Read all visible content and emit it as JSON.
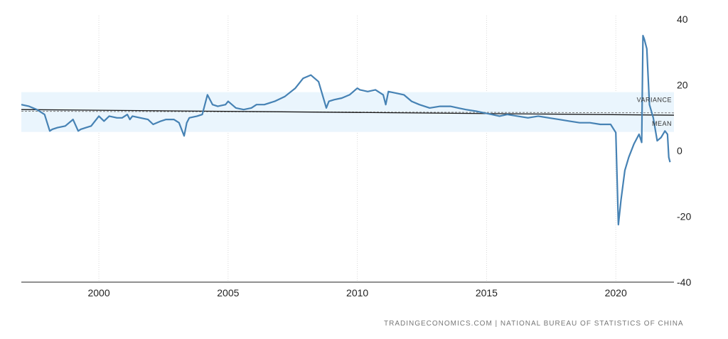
{
  "chart_data": {
    "type": "line",
    "title": "",
    "xlabel": "",
    "ylabel": "",
    "xlim": [
      1997.0,
      2022.25
    ],
    "ylim": [
      -40,
      40
    ],
    "x_ticks": [
      2000,
      2005,
      2010,
      2015,
      2020
    ],
    "y_ticks": [
      40,
      20,
      0,
      -20,
      -40
    ],
    "x_tick_labels": [
      "2000",
      "2005",
      "2010",
      "2015",
      "2020"
    ],
    "y_tick_labels": [
      "40",
      "20",
      "0",
      "-20",
      "-40"
    ],
    "grid": "vertical dotted",
    "series": [
      {
        "color": "#4682b4",
        "x": [
          1997.0,
          1997.3,
          1997.6,
          1997.9,
          1998.1,
          1998.2,
          1998.4,
          1998.7,
          1999.0,
          1999.2,
          1999.3,
          1999.5,
          1999.7,
          2000.0,
          2000.2,
          2000.4,
          2000.7,
          2000.9,
          2001.1,
          2001.2,
          2001.3,
          2001.6,
          2001.9,
          2002.1,
          2002.4,
          2002.6,
          2002.9,
          2003.1,
          2003.3,
          2003.4,
          2003.5,
          2003.8,
          2004.0,
          2004.2,
          2004.4,
          2004.6,
          2004.9,
          2005.0,
          2005.3,
          2005.6,
          2005.9,
          2006.1,
          2006.4,
          2006.8,
          2007.2,
          2007.6,
          2007.9,
          2008.2,
          2008.5,
          2008.8,
          2008.9,
          2009.1,
          2009.4,
          2009.7,
          2010.0,
          2010.1,
          2010.4,
          2010.7,
          2011.0,
          2011.1,
          2011.2,
          2011.5,
          2011.8,
          2012.1,
          2012.4,
          2012.8,
          2013.2,
          2013.6,
          2013.9,
          2014.2,
          2014.6,
          2014.9,
          2015.2,
          2015.5,
          2015.8,
          2016.2,
          2016.6,
          2017.0,
          2017.4,
          2017.8,
          2018.2,
          2018.6,
          2019.0,
          2019.4,
          2019.8,
          2020.0,
          2020.1,
          2020.2,
          2020.35,
          2020.5,
          2020.7,
          2020.9,
          2021.0,
          2021.05,
          2021.1,
          2021.2,
          2021.3,
          2021.45,
          2021.6,
          2021.75,
          2021.9,
          2022.0,
          2022.05,
          2022.1
        ],
        "y": [
          14.0,
          13.5,
          12.5,
          11.0,
          6.0,
          6.5,
          7.0,
          7.5,
          9.5,
          6.0,
          6.5,
          7.0,
          7.5,
          10.5,
          9.0,
          10.5,
          10.0,
          10.0,
          11.0,
          9.5,
          10.5,
          10.0,
          9.5,
          8.0,
          9.0,
          9.5,
          9.5,
          8.5,
          4.5,
          8.5,
          10.0,
          10.5,
          11.0,
          17.0,
          14.0,
          13.5,
          14.0,
          15.0,
          13.0,
          12.5,
          13.0,
          14.0,
          14.0,
          15.0,
          16.5,
          19.0,
          22.0,
          23.0,
          21.0,
          13.0,
          15.0,
          15.5,
          16.0,
          17.0,
          19.0,
          18.5,
          18.0,
          18.5,
          17.0,
          14.0,
          18.0,
          17.5,
          17.0,
          15.0,
          14.0,
          13.0,
          13.5,
          13.5,
          13.0,
          12.5,
          12.0,
          11.5,
          11.0,
          10.5,
          11.0,
          10.5,
          10.0,
          10.5,
          10.0,
          9.5,
          9.0,
          8.5,
          8.5,
          8.0,
          8.0,
          5.5,
          -22.5,
          -15.0,
          -6.0,
          -2.0,
          2.0,
          5.0,
          2.5,
          35.0,
          34.0,
          31.0,
          14.0,
          10.0,
          3.0,
          4.0,
          6.0,
          5.0,
          -2.0,
          -3.5
        ]
      }
    ],
    "mean": {
      "label": "MEAN",
      "y_start": 12.5,
      "y_end": 10.8
    },
    "variance": {
      "label": "VARIANCE",
      "upper": 17.8,
      "lower": 5.7,
      "dashed_start": 12.0,
      "dashed_end": 11.5
    },
    "colors": {
      "line": "#4682b4",
      "band": "#eaf5fd",
      "mean": "#1a1a1a",
      "grid": "#d9d9d9"
    }
  },
  "footer": {
    "source": "TRADINGECONOMICS.COM | NATIONAL BUREAU OF STATISTICS OF CHINA"
  }
}
